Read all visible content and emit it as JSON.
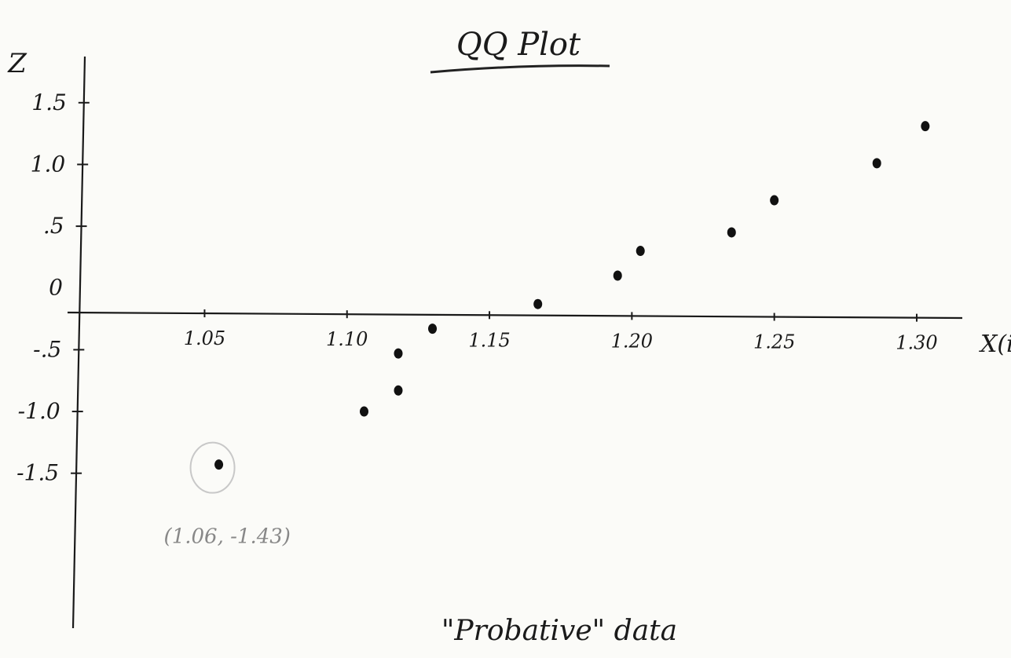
{
  "chart_data": {
    "type": "scatter",
    "title": "QQ Plot",
    "ylabel": "Z",
    "xlabel": "X(i)",
    "caption": "\"Probative\" data",
    "x_ticks": [
      {
        "value": 1.05,
        "label": "1.05"
      },
      {
        "value": 1.1,
        "label": "1.10"
      },
      {
        "value": 1.15,
        "label": "1.15"
      },
      {
        "value": 1.2,
        "label": "1.20"
      },
      {
        "value": 1.25,
        "label": "1.25"
      },
      {
        "value": 1.3,
        "label": "1.30"
      }
    ],
    "y_ticks": [
      {
        "value": 1.5,
        "label": "1.5"
      },
      {
        "value": 1.0,
        "label": "1.0"
      },
      {
        "value": 0.5,
        "label": ".5"
      },
      {
        "value": 0,
        "label": "0"
      },
      {
        "value": -0.5,
        "label": "-.5"
      },
      {
        "value": -1.0,
        "label": "-1.0"
      },
      {
        "value": -1.5,
        "label": "-1.5"
      }
    ],
    "xlim": [
      1.003,
      1.316
    ],
    "ylim": [
      -2.5,
      1.95
    ],
    "points": [
      {
        "x": 1.055,
        "y": -1.43
      },
      {
        "x": 1.106,
        "y": -1.0
      },
      {
        "x": 1.118,
        "y": -0.83
      },
      {
        "x": 1.118,
        "y": -0.53
      },
      {
        "x": 1.13,
        "y": -0.33
      },
      {
        "x": 1.167,
        "y": -0.13
      },
      {
        "x": 1.195,
        "y": 0.1
      },
      {
        "x": 1.203,
        "y": 0.3
      },
      {
        "x": 1.235,
        "y": 0.45
      },
      {
        "x": 1.25,
        "y": 0.71
      },
      {
        "x": 1.286,
        "y": 1.01
      },
      {
        "x": 1.303,
        "y": 1.31
      }
    ],
    "annotations": [
      {
        "text": "(1.06, -1.43)",
        "x": 1.055,
        "y": -1.43,
        "circled": true
      }
    ]
  }
}
